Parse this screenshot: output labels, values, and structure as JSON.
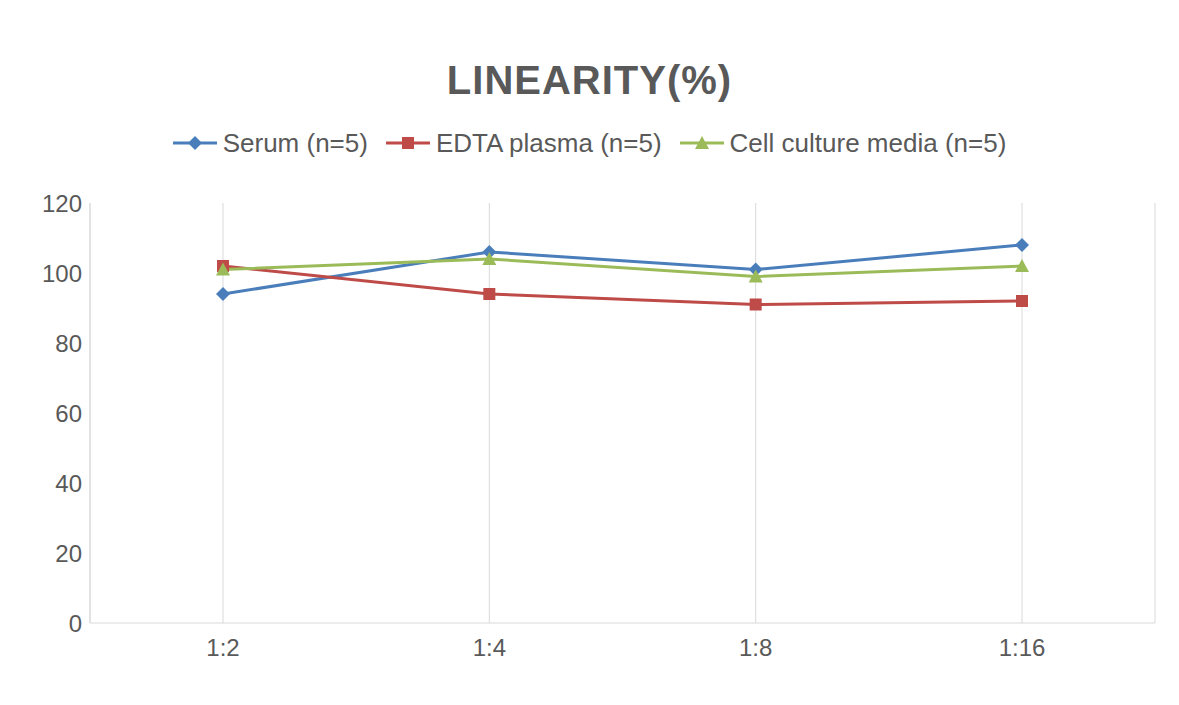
{
  "chart_data": {
    "type": "line",
    "title": "LINEARITY(%)",
    "categories": [
      "1:2",
      "1:4",
      "1:8",
      "1:16"
    ],
    "series": [
      {
        "name": "Serum (n=5)",
        "color": "#4a7ebb",
        "marker": "diamond",
        "values": [
          94,
          106,
          101,
          108
        ]
      },
      {
        "name": "EDTA plasma (n=5)",
        "color": "#be4b48",
        "marker": "square",
        "values": [
          102,
          94,
          91,
          92
        ]
      },
      {
        "name": "Cell culture media (n=5)",
        "color": "#9bbb59",
        "marker": "triangle",
        "values": [
          101,
          104,
          99,
          102
        ]
      }
    ],
    "ylim": [
      0,
      120
    ],
    "yticks": [
      0,
      20,
      40,
      60,
      80,
      100,
      120
    ],
    "grid": true,
    "legend": "top"
  }
}
